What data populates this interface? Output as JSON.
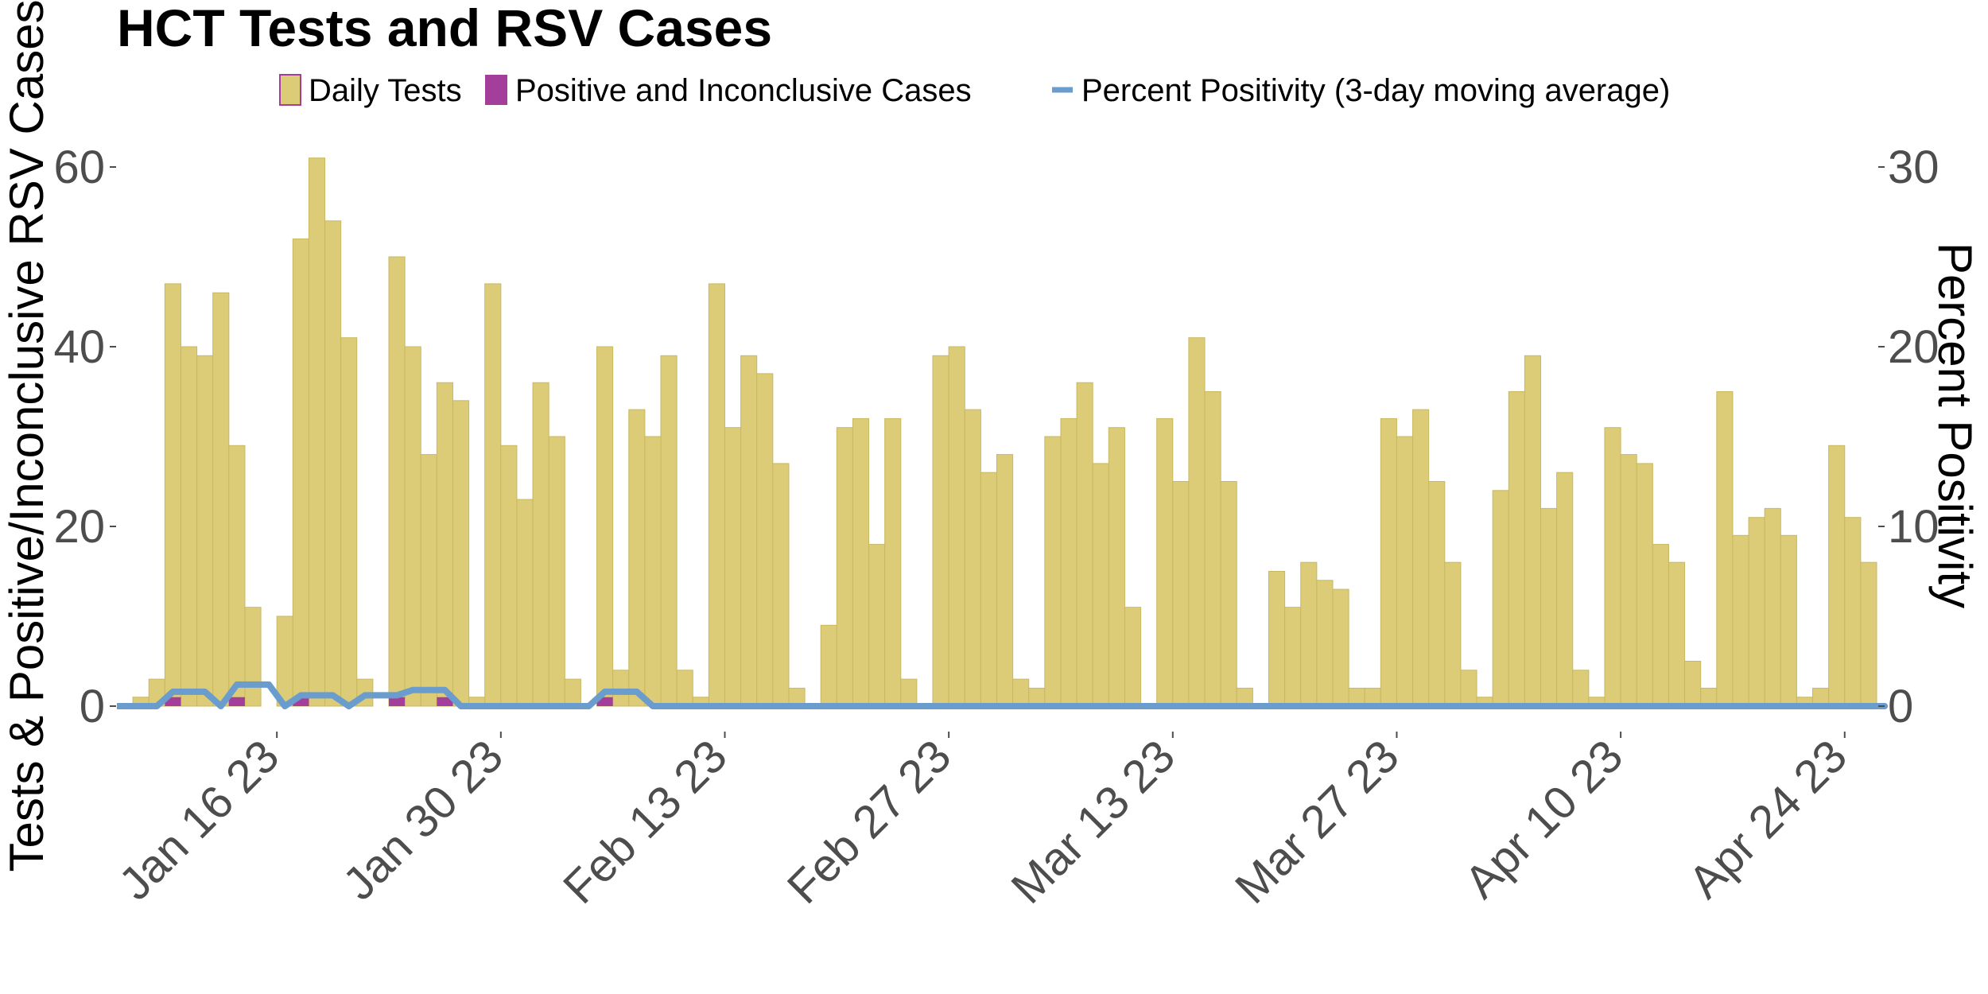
{
  "chart_data": {
    "type": "bar",
    "title": "HCT Tests and RSV Cases",
    "ylabel": "Tests & Positive/Inconclusive RSV Cases",
    "y2label": "Percent Positivity",
    "ylim": [
      0,
      60
    ],
    "y2lim": [
      0,
      30
    ],
    "yticks": [
      "0",
      "20",
      "40",
      "60"
    ],
    "y2ticks": [
      "0",
      "10",
      "20",
      "30"
    ],
    "x_start_date": "Jan 06 23",
    "x_tick_labels": [
      "Jan 16 23",
      "Jan 30 23",
      "Feb 13 23",
      "Feb 27 23",
      "Mar 13 23",
      "Mar 27 23",
      "Apr 10 23",
      "Apr 24 23"
    ],
    "x_tick_day_index": [
      10,
      24,
      38,
      52,
      66,
      80,
      94,
      108
    ],
    "legend": [
      "Daily Tests",
      "Positive and Inconclusive Cases",
      "Percent Positivity (3-day moving average)"
    ],
    "colors": {
      "tests": "#dccc78",
      "tests_border": "#c8b860",
      "cases": "#a33f9a",
      "positivity": "#6a9ccd"
    },
    "series": [
      {
        "name": "Daily Tests",
        "values": [
          0,
          1,
          3,
          47,
          40,
          39,
          46,
          29,
          11,
          0,
          10,
          52,
          61,
          54,
          41,
          3,
          0,
          50,
          40,
          28,
          36,
          34,
          1,
          47,
          29,
          23,
          36,
          30,
          3,
          0,
          40,
          4,
          33,
          30,
          39,
          4,
          1,
          47,
          31,
          39,
          37,
          27,
          2,
          0,
          9,
          31,
          32,
          18,
          32,
          3,
          0,
          39,
          40,
          33,
          26,
          28,
          3,
          2,
          30,
          32,
          36,
          27,
          31,
          11,
          0,
          32,
          25,
          41,
          35,
          25,
          2,
          0,
          15,
          11,
          16,
          14,
          13,
          2,
          2,
          32,
          30,
          33,
          25,
          16,
          4,
          1,
          24,
          35,
          39,
          22,
          26,
          4,
          1,
          31,
          28,
          27,
          18,
          16,
          5,
          2,
          35,
          19,
          21,
          22,
          19,
          1,
          2,
          29,
          21,
          16
        ]
      },
      {
        "name": "Positive and Inconclusive Cases",
        "values": [
          0,
          0,
          0,
          1,
          0,
          0,
          0,
          1,
          0,
          0,
          0,
          1,
          0,
          0,
          0,
          0,
          0,
          1,
          0,
          0,
          1,
          0,
          0,
          0,
          0,
          0,
          0,
          0,
          0,
          0,
          1,
          0,
          0,
          0,
          0,
          0,
          0,
          0,
          0,
          0,
          0,
          0,
          0,
          0,
          0,
          0,
          0,
          0,
          0,
          0,
          0,
          0,
          0,
          0,
          0,
          0,
          0,
          0,
          0,
          0,
          0,
          0,
          0,
          0,
          0,
          0,
          0,
          0,
          0,
          0,
          0,
          0,
          0,
          0,
          0,
          0,
          0,
          0,
          0,
          0,
          0,
          0,
          0,
          0,
          0,
          0,
          0,
          0,
          0,
          0,
          0,
          0,
          0,
          0,
          0,
          0,
          0,
          0,
          0,
          0,
          0,
          0,
          0,
          0,
          0,
          0,
          0,
          0,
          0,
          0,
          0
        ]
      },
      {
        "name": "Percent Positivity (3-day moving average)",
        "values": [
          0,
          0,
          0,
          0.8,
          0.8,
          0.8,
          0,
          1.2,
          1.2,
          1.2,
          0,
          0.6,
          0.6,
          0.6,
          0,
          0.6,
          0.6,
          0.6,
          0.9,
          0.9,
          0.9,
          0,
          0,
          0,
          0,
          0,
          0,
          0,
          0,
          0,
          0.8,
          0.8,
          0.8,
          0,
          0,
          0,
          0,
          0,
          0,
          0,
          0,
          0,
          0,
          0,
          0,
          0,
          0,
          0,
          0,
          0,
          0,
          0,
          0,
          0,
          0,
          0,
          0,
          0,
          0,
          0,
          0,
          0,
          0,
          0,
          0,
          0,
          0,
          0,
          0,
          0,
          0,
          0,
          0,
          0,
          0,
          0,
          0,
          0,
          0,
          0,
          0,
          0,
          0,
          0,
          0,
          0,
          0,
          0,
          0,
          0,
          0,
          0,
          0,
          0,
          0,
          0,
          0,
          0,
          0,
          0,
          0,
          0,
          0,
          0,
          0,
          0,
          0,
          0,
          0,
          0,
          0
        ]
      }
    ]
  }
}
